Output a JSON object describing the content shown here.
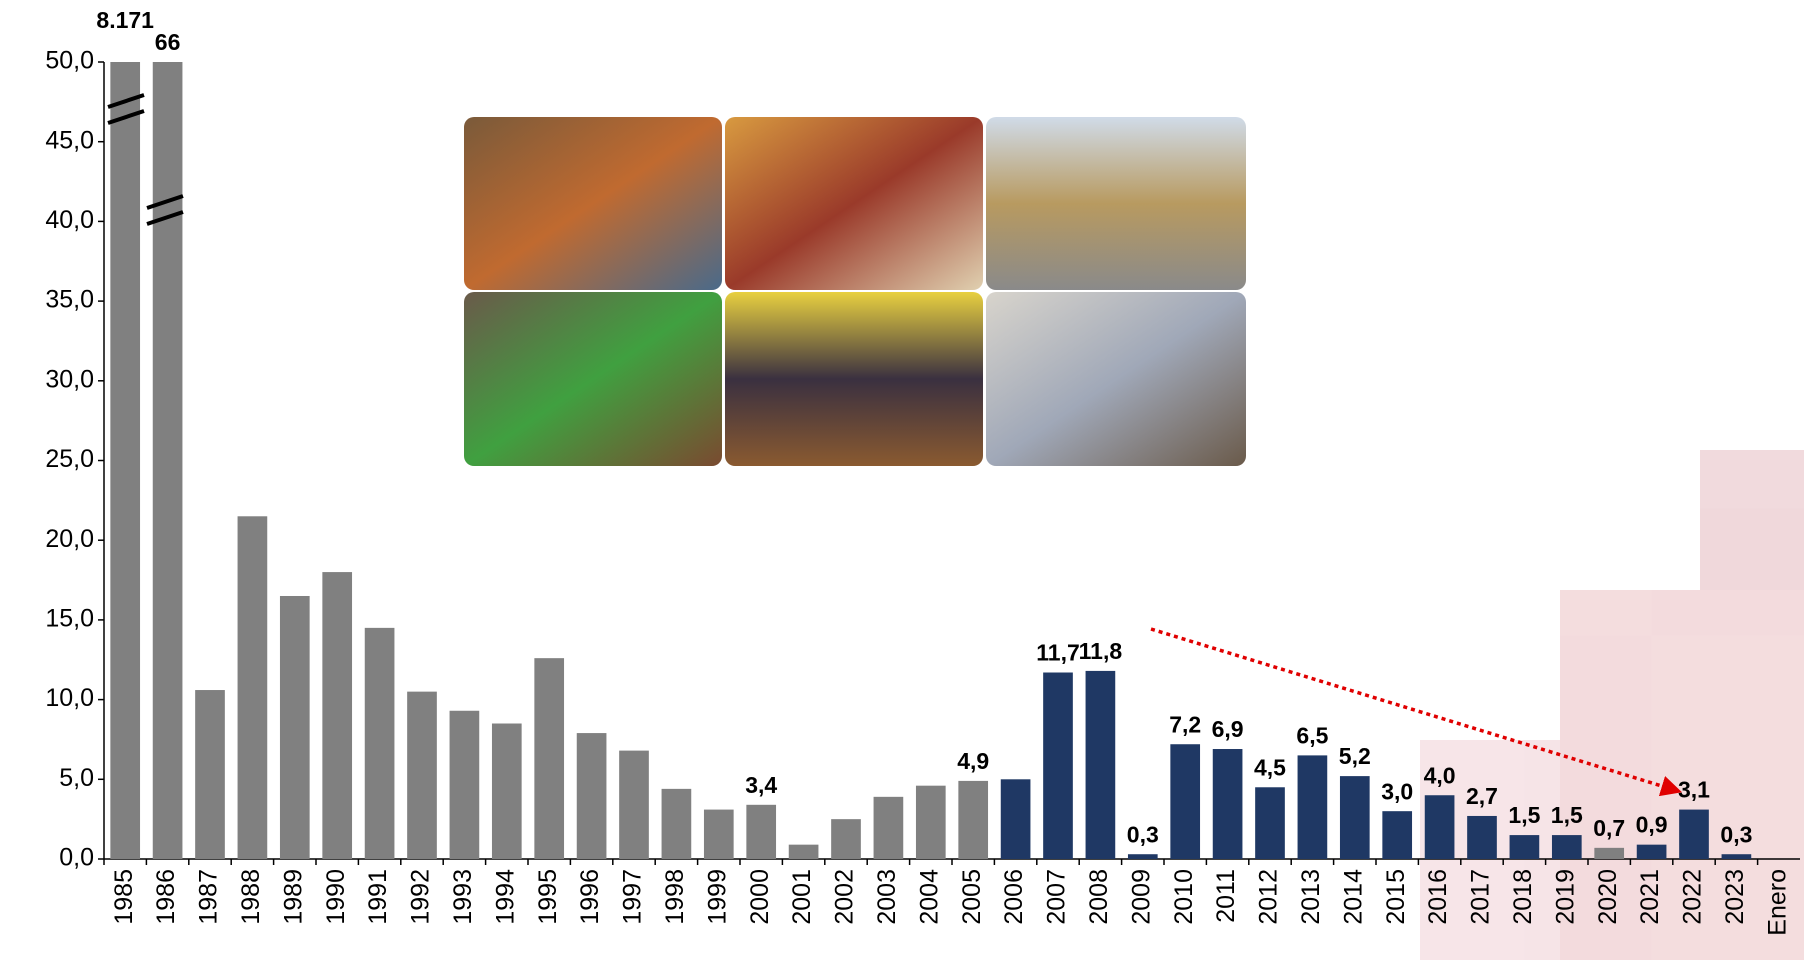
{
  "chart_data": {
    "type": "bar",
    "categories": [
      "1985",
      "1986",
      "1987",
      "1988",
      "1989",
      "1990",
      "1991",
      "1992",
      "1993",
      "1994",
      "1995",
      "1996",
      "1997",
      "1998",
      "1999",
      "2000",
      "2001",
      "2002",
      "2003",
      "2004",
      "2005",
      "2006",
      "2007",
      "2008",
      "2009",
      "2010",
      "2011",
      "2012",
      "2013",
      "2014",
      "2015",
      "2016",
      "2017",
      "2018",
      "2019",
      "2020",
      "2021",
      "2022",
      "2023",
      "Enero"
    ],
    "values": [
      8171,
      66,
      10.6,
      21.5,
      16.5,
      18.0,
      14.5,
      10.5,
      9.3,
      8.5,
      12.6,
      7.9,
      6.8,
      4.4,
      3.1,
      3.4,
      0.9,
      2.5,
      3.9,
      4.6,
      4.9,
      5.0,
      11.7,
      11.8,
      0.3,
      7.2,
      6.9,
      4.5,
      6.5,
      5.2,
      3.0,
      4.0,
      2.7,
      1.5,
      1.5,
      0.7,
      0.9,
      3.1,
      0.3,
      null
    ],
    "value_labels": [
      "8.171",
      "66",
      null,
      null,
      null,
      null,
      null,
      null,
      null,
      null,
      null,
      null,
      null,
      null,
      null,
      "3,4",
      null,
      null,
      null,
      null,
      "4,9",
      null,
      "11,7",
      "11,8",
      "0,3",
      "7,2",
      "6,9",
      "4,5",
      "6,5",
      "5,2",
      "3,0",
      "4,0",
      "2,7",
      "1,5",
      "1,5",
      "0,7",
      "0,9",
      "3,1",
      "0,3",
      null
    ],
    "colors": [
      "#808080",
      "#808080",
      "#808080",
      "#808080",
      "#808080",
      "#808080",
      "#808080",
      "#808080",
      "#808080",
      "#808080",
      "#808080",
      "#808080",
      "#808080",
      "#808080",
      "#808080",
      "#808080",
      "#808080",
      "#808080",
      "#808080",
      "#808080",
      "#808080",
      "#1f3864",
      "#1f3864",
      "#1f3864",
      "#1f3864",
      "#1f3864",
      "#1f3864",
      "#1f3864",
      "#1f3864",
      "#1f3864",
      "#1f3864",
      "#1f3864",
      "#1f3864",
      "#1f3864",
      "#1f3864",
      "#808080",
      "#1f3864",
      "#1f3864",
      "#1f3864",
      "#1f3864"
    ],
    "ylim": [
      0,
      50
    ],
    "yticks": [
      {
        "value": 0,
        "label": "0,0"
      },
      {
        "value": 5,
        "label": "5,0"
      },
      {
        "value": 10,
        "label": "10,0"
      },
      {
        "value": 15,
        "label": "15,0"
      },
      {
        "value": 20,
        "label": "20,0"
      },
      {
        "value": 25,
        "label": "25,0"
      },
      {
        "value": 30,
        "label": "30,0"
      },
      {
        "value": 35,
        "label": "35,0"
      },
      {
        "value": 40,
        "label": "40,0"
      },
      {
        "value": 45,
        "label": "45,0"
      },
      {
        "value": 50,
        "label": "50,0"
      }
    ],
    "grid": false
  }
}
